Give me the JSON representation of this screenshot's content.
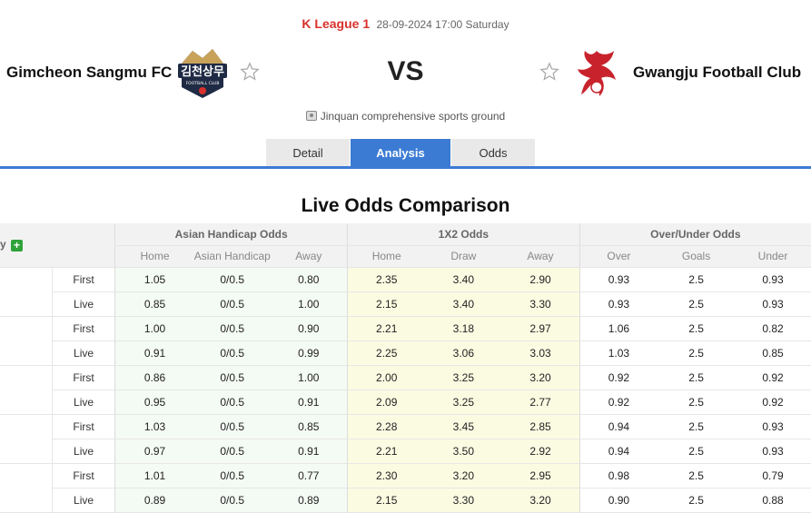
{
  "match": {
    "league": "K League 1",
    "datetime": "28-09-2024 17:00 Saturday",
    "home_team": "Gimcheon Sangmu FC",
    "away_team": "Gwangju Football Club",
    "vs": "VS",
    "venue": "Jinquan comprehensive sports ground",
    "home_logo_text": "김천상무",
    "home_logo_subtext": "FOOTBALL CLUB"
  },
  "tabs": [
    {
      "label": "Detail",
      "active": false
    },
    {
      "label": "Analysis",
      "active": true
    },
    {
      "label": "Odds",
      "active": false
    }
  ],
  "section_title": "Live Odds Comparison",
  "table": {
    "company_header": "y",
    "groups": [
      "Asian Handicap Odds",
      "1X2 Odds",
      "Over/Under Odds"
    ],
    "subheaders": [
      "Home",
      "Asian Handicap",
      "Away",
      "Home",
      "Draw",
      "Away",
      "Over",
      "Goals",
      "Under"
    ],
    "rows": [
      {
        "type": "First",
        "ah": [
          "1.05",
          "0/0.5",
          "0.80"
        ],
        "x12": [
          "2.35",
          "3.40",
          "2.90"
        ],
        "ou": [
          "0.93",
          "2.5",
          "0.93"
        ]
      },
      {
        "type": "Live",
        "ah": [
          "0.85",
          "0/0.5",
          "1.00"
        ],
        "x12": [
          "2.15",
          "3.40",
          "3.30"
        ],
        "ou": [
          "0.93",
          "2.5",
          "0.93"
        ]
      },
      {
        "type": "First",
        "ah": [
          "1.00",
          "0/0.5",
          "0.90"
        ],
        "x12": [
          "2.21",
          "3.18",
          "2.97"
        ],
        "ou": [
          "1.06",
          "2.5",
          "0.82"
        ]
      },
      {
        "type": "Live",
        "ah": [
          "0.91",
          "0/0.5",
          "0.99"
        ],
        "x12": [
          "2.25",
          "3.06",
          "3.03"
        ],
        "ou": [
          "1.03",
          "2.5",
          "0.85"
        ]
      },
      {
        "type": "First",
        "ah": [
          "0.86",
          "0/0.5",
          "1.00"
        ],
        "x12": [
          "2.00",
          "3.25",
          "3.20"
        ],
        "ou": [
          "0.92",
          "2.5",
          "0.92"
        ]
      },
      {
        "type": "Live",
        "ah": [
          "0.95",
          "0/0.5",
          "0.91"
        ],
        "x12": [
          "2.09",
          "3.25",
          "2.77"
        ],
        "ou": [
          "0.92",
          "2.5",
          "0.92"
        ]
      },
      {
        "type": "First",
        "ah": [
          "1.03",
          "0/0.5",
          "0.85"
        ],
        "x12": [
          "2.28",
          "3.45",
          "2.85"
        ],
        "ou": [
          "0.94",
          "2.5",
          "0.93"
        ]
      },
      {
        "type": "Live",
        "ah": [
          "0.97",
          "0/0.5",
          "0.91"
        ],
        "x12": [
          "2.21",
          "3.50",
          "2.92"
        ],
        "ou": [
          "0.94",
          "2.5",
          "0.93"
        ]
      },
      {
        "type": "First",
        "ah": [
          "1.01",
          "0/0.5",
          "0.77"
        ],
        "x12": [
          "2.30",
          "3.20",
          "2.95"
        ],
        "ou": [
          "0.98",
          "2.5",
          "0.79"
        ]
      },
      {
        "type": "Live",
        "ah": [
          "0.89",
          "0/0.5",
          "0.89"
        ],
        "x12": [
          "2.15",
          "3.30",
          "3.20"
        ],
        "ou": [
          "0.90",
          "2.5",
          "0.88"
        ]
      }
    ]
  },
  "colors": {
    "league_red": "#d9312b",
    "tab_blue": "#3b7bd4",
    "handicap_bg": "#f4faf4",
    "x12_bg": "#fbfbe2",
    "plus_green": "#2fa33a"
  }
}
